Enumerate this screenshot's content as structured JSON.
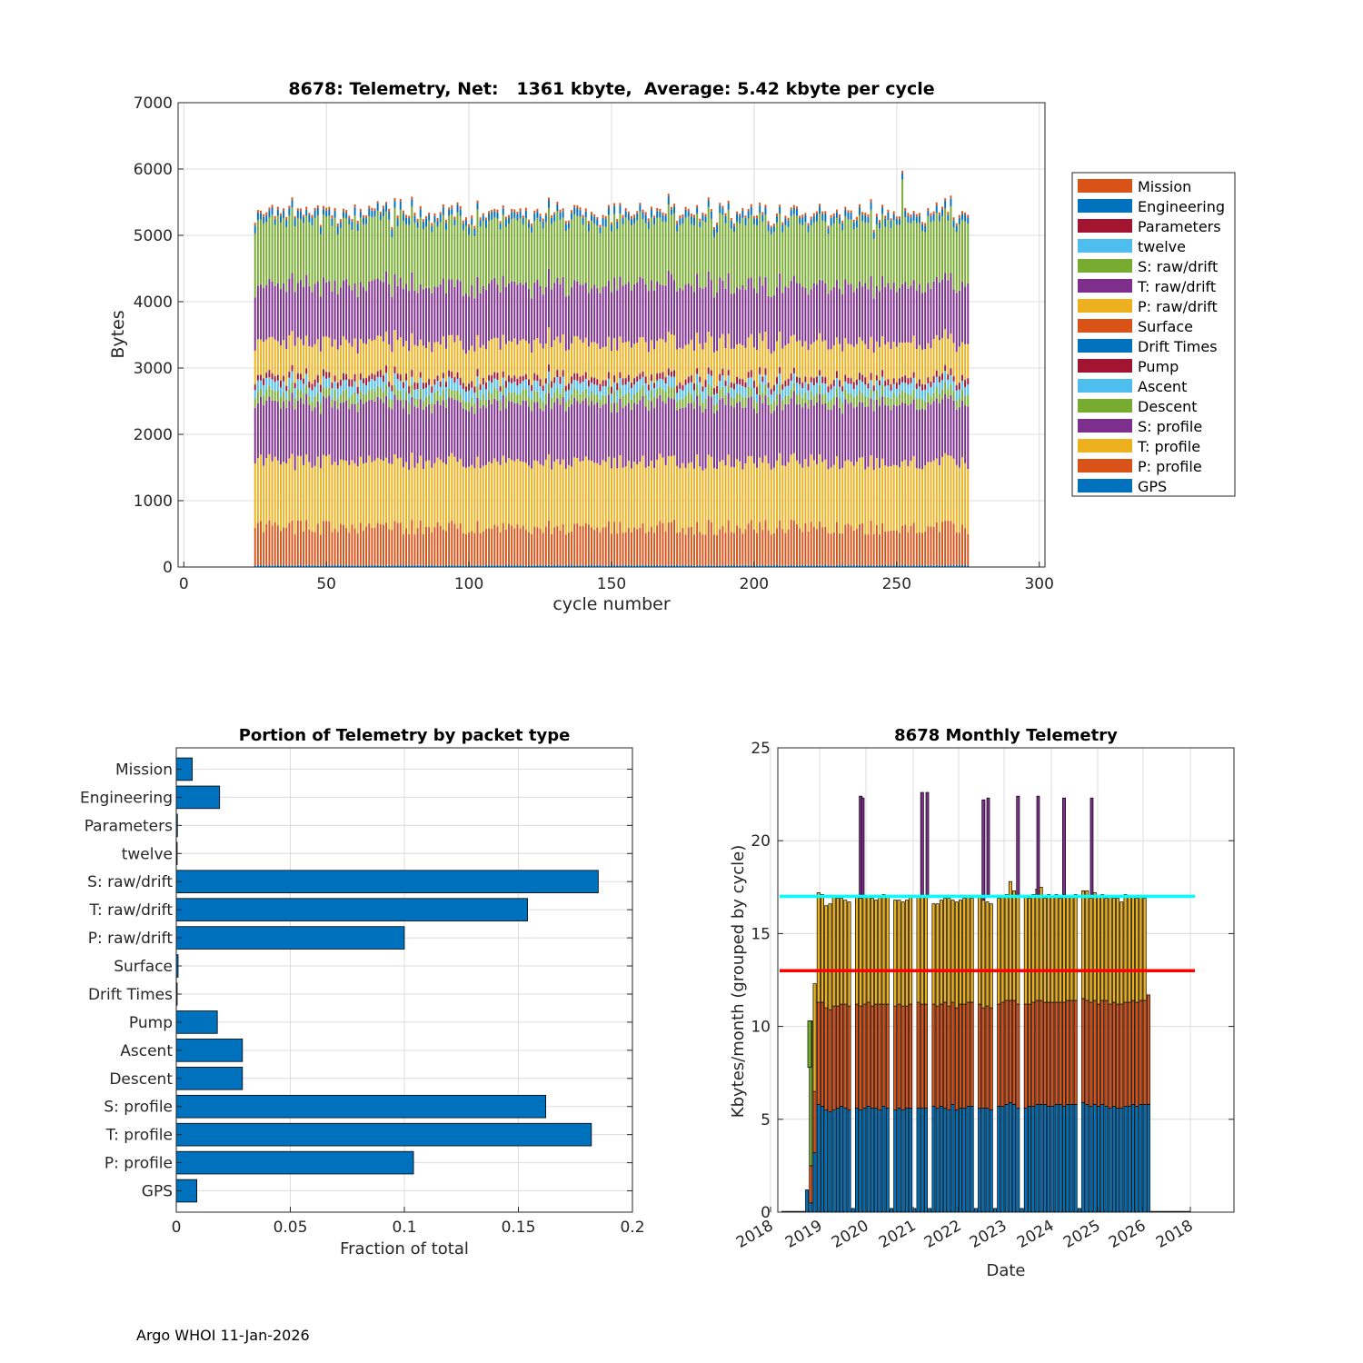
{
  "footer": "Argo WHOI 11-Jan-2026",
  "chart_data": [
    {
      "type": "bar",
      "stacked": true,
      "title": "8678: Telemetry, Net:   1361 kbyte,  Average: 5.42 kbyte per cycle",
      "xlabel": "cycle number",
      "ylabel": "Bytes",
      "xlim": [
        -2,
        302
      ],
      "ylim": [
        0,
        7000
      ],
      "xticks": [
        0,
        50,
        100,
        150,
        200,
        250,
        300
      ],
      "yticks": [
        0,
        1000,
        2000,
        3000,
        4000,
        5000,
        6000,
        7000
      ],
      "cycle_range": [
        25,
        275
      ],
      "grid": true,
      "legend_position": "right",
      "series": [
        {
          "name": "GPS",
          "color": "#0072BD",
          "typical_bytes": 30
        },
        {
          "name": "P: profile",
          "color": "#D95319",
          "typical_bytes": 570
        },
        {
          "name": "T: profile",
          "color": "#EDB120",
          "typical_bytes": 990
        },
        {
          "name": "S: profile",
          "color": "#7E2F8E",
          "typical_bytes": 880
        },
        {
          "name": "Descent",
          "color": "#77AC30",
          "typical_bytes": 150
        },
        {
          "name": "Ascent",
          "color": "#4DBEEE",
          "typical_bytes": 150
        },
        {
          "name": "Pump",
          "color": "#A2142F",
          "typical_bytes": 90
        },
        {
          "name": "Drift Times",
          "color": "#0072BD",
          "typical_bytes": 4
        },
        {
          "name": "Surface",
          "color": "#D95319",
          "typical_bytes": 6
        },
        {
          "name": "P: raw/drift",
          "color": "#EDB120",
          "typical_bytes": 520
        },
        {
          "name": "T: raw/drift",
          "color": "#7E2F8E",
          "typical_bytes": 860
        },
        {
          "name": "S: raw/drift",
          "color": "#77AC30",
          "typical_bytes": 960
        },
        {
          "name": "twelve",
          "color": "#4DBEEE",
          "typical_bytes": 2
        },
        {
          "name": "Parameters",
          "color": "#A2142F",
          "typical_bytes": 2
        },
        {
          "name": "Engineering",
          "color": "#0072BD",
          "typical_bytes": 100
        },
        {
          "name": "Mission",
          "color": "#D95319",
          "typical_bytes": 40
        }
      ],
      "legend_order": [
        "Mission",
        "Engineering",
        "Parameters",
        "twelve",
        "S: raw/drift",
        "T: raw/drift",
        "P: raw/drift",
        "Surface",
        "Drift Times",
        "Pump",
        "Ascent",
        "Descent",
        "S: profile",
        "T: profile",
        "P: profile",
        "GPS"
      ],
      "approx_totals": {
        "min": 5100,
        "max": 6050,
        "typical": 5400
      }
    },
    {
      "type": "bar",
      "orientation": "horizontal",
      "title": "Portion of Telemetry by packet type",
      "xlabel": "Fraction of total",
      "ylabel": "",
      "xlim": [
        0,
        0.2
      ],
      "xticks": [
        0,
        0.05,
        0.1,
        0.15,
        0.2
      ],
      "xtick_labels": [
        "0",
        "0.05",
        "0.1",
        "0.15",
        "0.2"
      ],
      "grid": true,
      "color": "#0072BD",
      "categories": [
        "Mission",
        "Engineering",
        "Parameters",
        "twelve",
        "S: raw/drift",
        "T: raw/drift",
        "P: raw/drift",
        "Surface",
        "Drift Times",
        "Pump",
        "Ascent",
        "Descent",
        "S: profile",
        "T: profile",
        "P: profile",
        "GPS"
      ],
      "values": [
        0.007,
        0.019,
        0.0005,
        0.0004,
        0.185,
        0.154,
        0.1,
        0.0008,
        0.0004,
        0.018,
        0.029,
        0.029,
        0.162,
        0.182,
        0.104,
        0.009
      ]
    },
    {
      "type": "bar",
      "stacked": true,
      "title": "8678 Monthly Telemetry",
      "xlabel": "Date",
      "ylabel": "Kbytes/month (grouped by cycle)",
      "ylim": [
        0,
        25
      ],
      "yticks": [
        0,
        5,
        10,
        15,
        20,
        25
      ],
      "xtick_labels": [
        "2018",
        "2019",
        "2020",
        "2021",
        "2022",
        "2023",
        "2024",
        "2025",
        "2026",
        "2018"
      ],
      "grid": true,
      "reference_lines": [
        {
          "value": 17,
          "color": "#00FFFF"
        },
        {
          "value": 13,
          "color": "#FF0000"
        }
      ],
      "series_colors": [
        "#0072BD",
        "#D95319",
        "#EDB120",
        "#7E2F8E",
        "#77AC30"
      ],
      "months": [
        {
          "date": "2018-08",
          "stack": [
            1.2
          ]
        },
        {
          "date": "2018-09",
          "stack": [
            0.5,
            2.0,
            0,
            0,
            7.8
          ]
        },
        {
          "date": "2018-10",
          "stack": [
            3.2,
            3.3,
            5.8
          ]
        },
        {
          "date": "2018-11",
          "stack": [
            5.8,
            5.5,
            5.9
          ]
        },
        {
          "date": "2018-12",
          "stack": [
            5.7,
            5.6,
            5.8
          ]
        },
        {
          "date": "2019-01",
          "stack": [
            5.5,
            5.5,
            5.5
          ]
        },
        {
          "date": "2019-02",
          "stack": [
            5.4,
            5.5,
            5.7
          ]
        },
        {
          "date": "2019-03",
          "stack": [
            5.5,
            5.6,
            5.9
          ]
        },
        {
          "date": "2019-04",
          "stack": [
            5.6,
            5.5,
            5.8
          ]
        },
        {
          "date": "2019-05",
          "stack": [
            5.7,
            5.5,
            5.7
          ]
        },
        {
          "date": "2019-06",
          "stack": [
            5.6,
            5.6,
            5.6
          ]
        },
        {
          "date": "2019-07",
          "stack": [
            5.5,
            5.6,
            5.6
          ]
        },
        {
          "date": "2019-08",
          "stack": [
            0.2
          ]
        },
        {
          "date": "2019-09",
          "stack": [
            5.6,
            5.6,
            5.8
          ]
        },
        {
          "date": "2019-10",
          "stack": [
            5.5,
            5.6,
            5.8,
            5.5
          ]
        },
        {
          "date": "2019-11",
          "stack": [
            5.6,
            5.6,
            5.8
          ]
        },
        {
          "date": "2019-12",
          "stack": [
            5.7,
            5.6,
            5.7
          ]
        },
        {
          "date": "2020-01",
          "stack": [
            5.6,
            5.5,
            5.8
          ]
        },
        {
          "date": "2020-02",
          "stack": [
            5.6,
            5.6,
            5.6
          ]
        },
        {
          "date": "2020-03",
          "stack": [
            5.5,
            5.7,
            5.8
          ]
        },
        {
          "date": "2020-04",
          "stack": [
            5.7,
            5.5,
            5.9
          ]
        },
        {
          "date": "2020-05",
          "stack": [
            5.6,
            5.6,
            5.8
          ]
        },
        {
          "date": "2020-06",
          "stack": [
            0.2
          ]
        },
        {
          "date": "2020-07",
          "stack": [
            5.5,
            5.6,
            5.7
          ]
        },
        {
          "date": "2020-08",
          "stack": [
            5.6,
            5.6,
            5.6
          ]
        },
        {
          "date": "2020-09",
          "stack": [
            5.5,
            5.6,
            5.6
          ]
        },
        {
          "date": "2020-10",
          "stack": [
            5.6,
            5.5,
            5.7
          ]
        },
        {
          "date": "2020-11",
          "stack": [
            5.6,
            5.6,
            5.8
          ]
        },
        {
          "date": "2020-12",
          "stack": [
            0.2
          ]
        },
        {
          "date": "2021-01",
          "stack": [
            5.6,
            5.7,
            5.7
          ]
        },
        {
          "date": "2021-02",
          "stack": [
            5.6,
            5.6,
            5.8,
            5.6
          ]
        },
        {
          "date": "2021-03",
          "stack": [
            5.6,
            5.6,
            5.8
          ]
        },
        {
          "date": "2021-04",
          "stack": [
            0.2
          ]
        },
        {
          "date": "2021-05",
          "stack": [
            5.7,
            5.5,
            5.4
          ]
        },
        {
          "date": "2021-06",
          "stack": [
            5.6,
            5.5,
            5.5
          ]
        },
        {
          "date": "2021-07",
          "stack": [
            5.7,
            5.5,
            5.6
          ]
        },
        {
          "date": "2021-08",
          "stack": [
            5.6,
            5.7,
            5.6
          ]
        },
        {
          "date": "2021-09",
          "stack": [
            5.5,
            5.6,
            5.8
          ]
        },
        {
          "date": "2021-10",
          "stack": [
            5.8,
            5.5,
            5.5
          ]
        },
        {
          "date": "2021-11",
          "stack": [
            5.5,
            5.5,
            5.7
          ]
        },
        {
          "date": "2021-12",
          "stack": [
            5.6,
            5.6,
            5.6
          ]
        },
        {
          "date": "2022-01",
          "stack": [
            5.6,
            5.6,
            5.7
          ]
        },
        {
          "date": "2022-02",
          "stack": [
            5.7,
            5.6,
            5.7
          ]
        },
        {
          "date": "2022-03",
          "stack": [
            5.7,
            5.6,
            5.6
          ]
        },
        {
          "date": "2022-04",
          "stack": [
            0.2
          ]
        },
        {
          "date": "2022-05",
          "stack": [
            5.6,
            5.6,
            5.8
          ]
        },
        {
          "date": "2022-06",
          "stack": [
            5.6,
            5.4,
            5.8,
            5.4
          ]
        },
        {
          "date": "2022-07",
          "stack": [
            5.6,
            5.5,
            5.6
          ]
        },
        {
          "date": "2022-08",
          "stack": [
            5.5,
            5.5,
            5.6
          ]
        },
        {
          "date": "2022-09",
          "stack": [
            0.2
          ]
        },
        {
          "date": "2022-10",
          "stack": [
            5.7,
            5.5,
            5.7
          ]
        },
        {
          "date": "2022-11",
          "stack": [
            5.7,
            5.6,
            5.7
          ]
        },
        {
          "date": "2022-12",
          "stack": [
            5.8,
            5.6,
            5.7
          ]
        },
        {
          "date": "2023-01",
          "stack": [
            5.9,
            5.5,
            6.4
          ]
        },
        {
          "date": "2023-02",
          "stack": [
            5.8,
            5.6,
            5.9
          ]
        },
        {
          "date": "2023-03",
          "stack": [
            5.6,
            5.6,
            5.8,
            5.4
          ]
        },
        {
          "date": "2023-04",
          "stack": [
            0.2
          ]
        },
        {
          "date": "2023-05",
          "stack": [
            5.6,
            5.6,
            5.8
          ]
        },
        {
          "date": "2023-06",
          "stack": [
            5.7,
            5.5,
            5.7
          ]
        },
        {
          "date": "2023-07",
          "stack": [
            5.7,
            5.6,
            5.8
          ]
        },
        {
          "date": "2023-08",
          "stack": [
            5.8,
            5.6,
            6.0
          ]
        },
        {
          "date": "2023-09",
          "stack": [
            5.8,
            5.6,
            6.1
          ]
        },
        {
          "date": "2023-10",
          "stack": [
            5.8,
            5.5,
            5.6
          ]
        },
        {
          "date": "2023-11",
          "stack": [
            5.7,
            5.6,
            5.8
          ]
        },
        {
          "date": "2023-12",
          "stack": [
            5.7,
            5.6,
            5.7
          ]
        },
        {
          "date": "2024-01",
          "stack": [
            5.8,
            5.5,
            5.8
          ]
        },
        {
          "date": "2024-02",
          "stack": [
            5.8,
            5.5,
            5.6
          ]
        },
        {
          "date": "2024-03",
          "stack": [
            5.7,
            5.6,
            5.8,
            5.2
          ]
        },
        {
          "date": "2024-04",
          "stack": [
            5.8,
            5.6,
            5.6
          ]
        },
        {
          "date": "2024-05",
          "stack": [
            5.8,
            5.6,
            5.6
          ]
        },
        {
          "date": "2024-06",
          "stack": [
            5.8,
            5.6,
            5.7
          ]
        },
        {
          "date": "2024-07",
          "stack": [
            0.2
          ]
        },
        {
          "date": "2024-08",
          "stack": [
            5.9,
            5.6,
            5.8
          ]
        },
        {
          "date": "2024-09",
          "stack": [
            5.8,
            5.6,
            5.9
          ]
        },
        {
          "date": "2024-10",
          "stack": [
            5.7,
            5.6,
            5.6
          ]
        },
        {
          "date": "2024-11",
          "stack": [
            5.8,
            5.6,
            5.8
          ]
        },
        {
          "date": "2024-12",
          "stack": [
            5.7,
            5.5,
            5.8
          ]
        },
        {
          "date": "2025-01",
          "stack": [
            5.8,
            5.6,
            5.7
          ]
        },
        {
          "date": "2025-02",
          "stack": [
            5.7,
            5.7,
            5.5
          ]
        },
        {
          "date": "2025-03",
          "stack": [
            5.6,
            5.6,
            5.8
          ]
        },
        {
          "date": "2025-04",
          "stack": [
            5.7,
            5.6,
            5.6
          ]
        },
        {
          "date": "2025-05",
          "stack": [
            5.6,
            5.6,
            5.7
          ]
        },
        {
          "date": "2025-06",
          "stack": [
            5.6,
            5.6,
            5.5
          ]
        },
        {
          "date": "2025-07",
          "stack": [
            5.7,
            5.6,
            5.8
          ]
        },
        {
          "date": "2025-08",
          "stack": [
            5.7,
            5.6,
            5.7
          ]
        },
        {
          "date": "2025-09",
          "stack": [
            5.8,
            5.6,
            5.6
          ]
        },
        {
          "date": "2025-10",
          "stack": [
            5.7,
            5.6,
            5.6
          ]
        },
        {
          "date": "2025-11",
          "stack": [
            5.8,
            5.6,
            5.6
          ]
        },
        {
          "date": "2025-12",
          "stack": [
            5.8,
            5.6,
            5.5
          ]
        },
        {
          "date": "2026-01",
          "stack": [
            5.8,
            5.9
          ]
        }
      ],
      "approx_monthly_typical": 17
    }
  ]
}
